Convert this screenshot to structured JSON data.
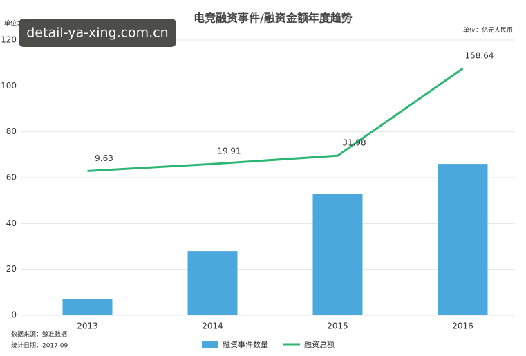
{
  "chart_data": {
    "type": "bar-line",
    "title": "电竞融资事件/融资金额年度趋势",
    "y_unit": "单位：个",
    "y2_unit": "单位：亿元人民币",
    "source": "数据来源：鲸准数据",
    "date_note": "统计日期：2017.09",
    "watermark": "detail-ya-xing.com.cn",
    "categories": [
      "2013",
      "2014",
      "2015",
      "2016"
    ],
    "series": [
      {
        "name": "融资事件数量",
        "type": "bar",
        "color": "#4aa8dc",
        "values": [
          7,
          28,
          53,
          66
        ]
      },
      {
        "name": "融资总额",
        "type": "line",
        "color": "#2bb673",
        "axis": "y2",
        "values": [
          9.63,
          19.91,
          31.98,
          158.64
        ]
      }
    ],
    "ylim": [
      0,
      120
    ],
    "yticks": [
      0,
      20,
      40,
      60,
      80,
      100,
      120
    ],
    "y2lim": [
      -200,
      200
    ],
    "grid": true
  }
}
